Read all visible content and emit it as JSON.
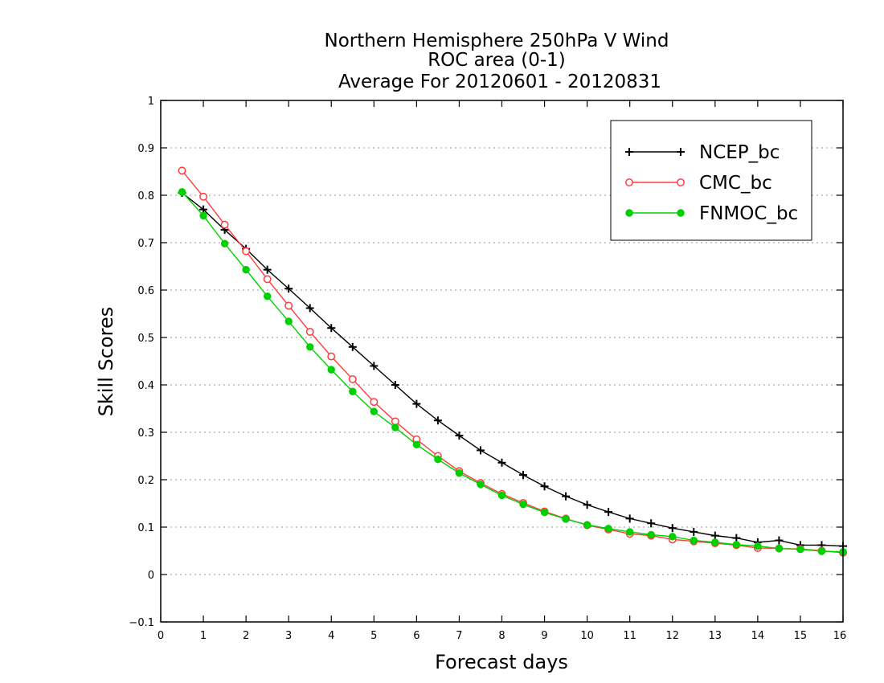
{
  "chart_data": {
    "type": "line",
    "title": [
      "Northern Hemisphere 250hPa V Wind",
      "ROC area (0-1)",
      "Average For 20120601 - 20120831"
    ],
    "xlabel": "Forecast days",
    "ylabel": "Skill Scores",
    "xlim": [
      0,
      16
    ],
    "ylim": [
      -0.1,
      1
    ],
    "xticks": [
      0,
      1,
      2,
      3,
      4,
      5,
      6,
      7,
      8,
      9,
      10,
      11,
      12,
      13,
      14,
      15,
      16
    ],
    "yticks": [
      -0.1,
      0,
      0.1,
      0.2,
      0.3,
      0.4,
      0.5,
      0.6,
      0.7,
      0.8,
      0.9,
      1
    ],
    "ytick_labels": [
      "−0.1",
      "0",
      "0.1",
      "0.2",
      "0.3",
      "0.4",
      "0.5",
      "0.6",
      "0.7",
      "0.8",
      "0.9",
      "1"
    ],
    "grid": "horizontal-dotted",
    "legend_position": "top-right",
    "x": [
      0.5,
      1,
      1.5,
      2,
      2.5,
      3,
      3.5,
      4,
      4.5,
      5,
      5.5,
      6,
      6.5,
      7,
      7.5,
      8,
      8.5,
      9,
      9.5,
      10,
      10.5,
      11,
      11.5,
      12,
      12.5,
      13,
      13.5,
      14,
      14.5,
      15,
      15.5,
      16
    ],
    "series": [
      {
        "name": "NCEP_bc",
        "color": "#000000",
        "marker": "plus",
        "values": [
          0.805,
          0.77,
          0.727,
          0.687,
          0.643,
          0.603,
          0.562,
          0.52,
          0.48,
          0.44,
          0.4,
          0.36,
          0.325,
          0.293,
          0.262,
          0.236,
          0.21,
          0.186,
          0.165,
          0.147,
          0.132,
          0.118,
          0.108,
          0.098,
          0.09,
          0.082,
          0.077,
          0.068,
          0.072,
          0.062,
          0.062,
          0.06
        ]
      },
      {
        "name": "CMC_bc",
        "color": "#ff3c3c",
        "marker": "open-circle",
        "values": [
          0.852,
          0.797,
          0.738,
          0.682,
          0.623,
          0.567,
          0.512,
          0.46,
          0.412,
          0.364,
          0.323,
          0.285,
          0.25,
          0.218,
          0.193,
          0.17,
          0.151,
          0.133,
          0.118,
          0.104,
          0.095,
          0.086,
          0.082,
          0.074,
          0.07,
          0.066,
          0.062,
          0.056,
          0.055,
          0.054,
          0.05,
          0.046
        ]
      },
      {
        "name": "FNMOC_bc",
        "color": "#00d000",
        "marker": "filled-circle",
        "values": [
          0.807,
          0.757,
          0.698,
          0.643,
          0.587,
          0.534,
          0.48,
          0.432,
          0.386,
          0.344,
          0.31,
          0.274,
          0.243,
          0.214,
          0.19,
          0.167,
          0.148,
          0.131,
          0.117,
          0.105,
          0.097,
          0.09,
          0.084,
          0.08,
          0.072,
          0.068,
          0.063,
          0.06,
          0.055,
          0.053,
          0.049,
          0.048
        ]
      }
    ]
  }
}
